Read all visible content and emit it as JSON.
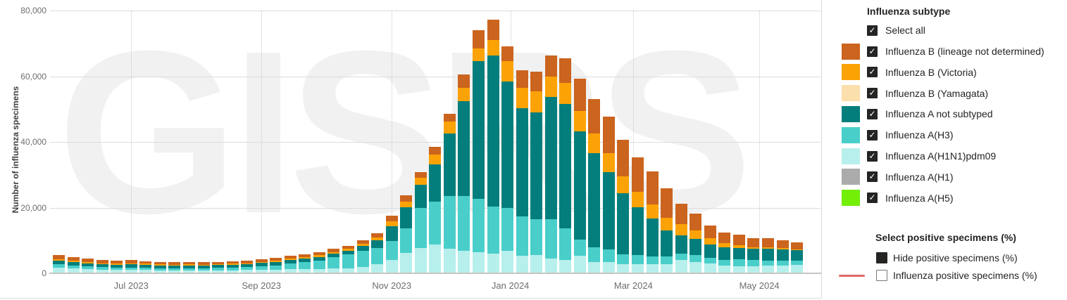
{
  "chart": {
    "watermark": "GISRS",
    "y_axis": {
      "title": "Number of influenza specimens",
      "ticks": [
        {
          "value": 0,
          "label": "0"
        },
        {
          "value": 20000,
          "label": "20,000"
        },
        {
          "value": 40000,
          "label": "40,000"
        },
        {
          "value": 60000,
          "label": "60,000"
        },
        {
          "value": 80000,
          "label": "80,000"
        }
      ],
      "max": 80000
    },
    "x_axis": {
      "months": [
        {
          "label": "Jul 2023",
          "week": 5.0
        },
        {
          "label": "Sep 2023",
          "week": 14.0
        },
        {
          "label": "Nov 2023",
          "week": 23.0
        },
        {
          "label": "Jan 2024",
          "week": 31.2
        },
        {
          "label": "Mar 2024",
          "week": 39.7
        },
        {
          "label": "May 2024",
          "week": 48.4
        }
      ]
    }
  },
  "chart_data": {
    "type": "bar",
    "stacked": true,
    "x_unit": "week",
    "weeks": 52,
    "x_range": [
      "Jun 2023",
      "May 2024"
    ],
    "ylim": [
      0,
      80000
    ],
    "ylabel": "Number of influenza specimens",
    "legend_position": "right",
    "grid": "horizontal-solid, monthly-dotted-vertical",
    "series": [
      {
        "key": "a_h1n1pdm09",
        "name": "Influenza A(H1N1)pdm09",
        "color": "#B7EFEC",
        "values": [
          1800,
          1500,
          1300,
          1100,
          1000,
          1000,
          1000,
          900,
          900,
          900,
          900,
          900,
          900,
          1000,
          1050,
          1050,
          1200,
          1250,
          1300,
          1450,
          1600,
          2000,
          2700,
          4100,
          6200,
          7800,
          8800,
          7500,
          6800,
          6400,
          6000,
          6900,
          5300,
          5500,
          4400,
          4100,
          5300,
          3500,
          3400,
          2800,
          2800,
          2800,
          2800,
          4000,
          3500,
          2900,
          2400,
          2100,
          2200,
          2300,
          2300,
          2600
        ]
      },
      {
        "key": "a_h3",
        "name": "Influenza A(H3)",
        "color": "#49CECA",
        "values": [
          900,
          900,
          800,
          800,
          700,
          800,
          700,
          700,
          700,
          700,
          700,
          750,
          800,
          900,
          1100,
          1400,
          1700,
          2100,
          2600,
          3400,
          4200,
          4800,
          5000,
          5700,
          7500,
          12200,
          13000,
          16100,
          16700,
          16300,
          14300,
          13000,
          12000,
          11000,
          12100,
          9500,
          5000,
          4500,
          3900,
          3000,
          2700,
          2400,
          2300,
          2000,
          2000,
          1800,
          1700,
          2100,
          1800,
          1600,
          1500,
          1300
        ]
      },
      {
        "key": "a_not_subtyped",
        "name": "Influenza A not subtyped",
        "color": "#037E7C",
        "values": [
          1200,
          1100,
          1000,
          900,
          900,
          1000,
          900,
          850,
          800,
          850,
          800,
          850,
          900,
          900,
          1000,
          1000,
          1100,
          1100,
          1100,
          1100,
          1100,
          1500,
          2400,
          4600,
          6400,
          6900,
          11400,
          19000,
          28900,
          41800,
          46000,
          38400,
          32900,
          32500,
          37200,
          38000,
          33000,
          28500,
          23500,
          18500,
          14600,
          11500,
          8000,
          5600,
          4900,
          4100,
          3800,
          3600,
          3400,
          3500,
          3400,
          3100
        ]
      },
      {
        "key": "b_victoria",
        "name": "Influenza B (Victoria)",
        "color": "#FBA306",
        "values": [
          400,
          400,
          300,
          300,
          300,
          300,
          300,
          250,
          250,
          250,
          250,
          250,
          300,
          300,
          300,
          350,
          400,
          450,
          500,
          550,
          600,
          700,
          900,
          1400,
          1800,
          2100,
          2900,
          3600,
          4000,
          3900,
          4800,
          6200,
          6300,
          6500,
          6200,
          6400,
          6100,
          6000,
          5700,
          5300,
          4800,
          4300,
          3900,
          3300,
          2600,
          1800,
          1200,
          700,
          600,
          500,
          400,
          300
        ]
      },
      {
        "key": "b_lineage_not_determined",
        "name": "Influenza B (lineage not determined)",
        "color": "#CB641E",
        "values": [
          1200,
          1100,
          1000,
          900,
          900,
          900,
          800,
          800,
          750,
          800,
          750,
          750,
          800,
          800,
          850,
          900,
          900,
          900,
          900,
          900,
          900,
          1000,
          1200,
          1800,
          1800,
          1800,
          2300,
          2400,
          4100,
          5700,
          6200,
          4600,
          5300,
          6000,
          6500,
          7500,
          9800,
          10500,
          11200,
          11000,
          10500,
          10000,
          8800,
          6200,
          5200,
          4000,
          3400,
          3200,
          2800,
          2700,
          2500,
          2100
        ]
      },
      {
        "key": "b_yamagata",
        "name": "Influenza B (Yamagata)",
        "color": "#FBDFAC",
        "values": null,
        "note": "no visible specimens"
      },
      {
        "key": "a_h1",
        "name": "Influenza A(H1)",
        "color": "#ABABAB",
        "values": null,
        "note": "no visible specimens"
      },
      {
        "key": "a_h5",
        "name": "Influenza A(H5)",
        "color": "#72EE07",
        "values": null,
        "note": "no visible specimens"
      }
    ]
  },
  "legend": {
    "title": "Influenza subtype",
    "select_all": {
      "label": "Select all",
      "checked": true
    },
    "items": [
      {
        "label": "Influenza B (lineage not determined)",
        "color": "#CB641E",
        "checked": true
      },
      {
        "label": "Influenza B (Victoria)",
        "color": "#FBA306",
        "checked": true
      },
      {
        "label": "Influenza B (Yamagata)",
        "color": "#FBDFAC",
        "checked": true
      },
      {
        "label": "Influenza A not subtyped",
        "color": "#037E7C",
        "checked": true
      },
      {
        "label": "Influenza A(H3)",
        "color": "#49CECA",
        "checked": true
      },
      {
        "label": "Influenza A(H1N1)pdm09",
        "color": "#B7EFEC",
        "checked": true
      },
      {
        "label": "Influenza A(H1)",
        "color": "#ABABAB",
        "checked": true
      },
      {
        "label": "Influenza A(H5)",
        "color": "#72EE07",
        "checked": true
      }
    ],
    "positive": {
      "title": "Select positive specimens (%)",
      "items": [
        {
          "label": "Hide positive specimens (%)",
          "marker": "filled-square",
          "color": "#252423",
          "selected": true
        },
        {
          "label": "Influenza positive specimens (%)",
          "marker": "red-line",
          "color": "#E26868",
          "selected": false
        }
      ]
    }
  },
  "colors": {
    "axis_text": "#6D6D6D",
    "gridline": "#DCDCDC",
    "baseline": "#C6C6C4",
    "legend_text": "#252423",
    "checkbox": "#252423",
    "positive_line": "#E26868",
    "watermark": "#F1F1F1"
  }
}
